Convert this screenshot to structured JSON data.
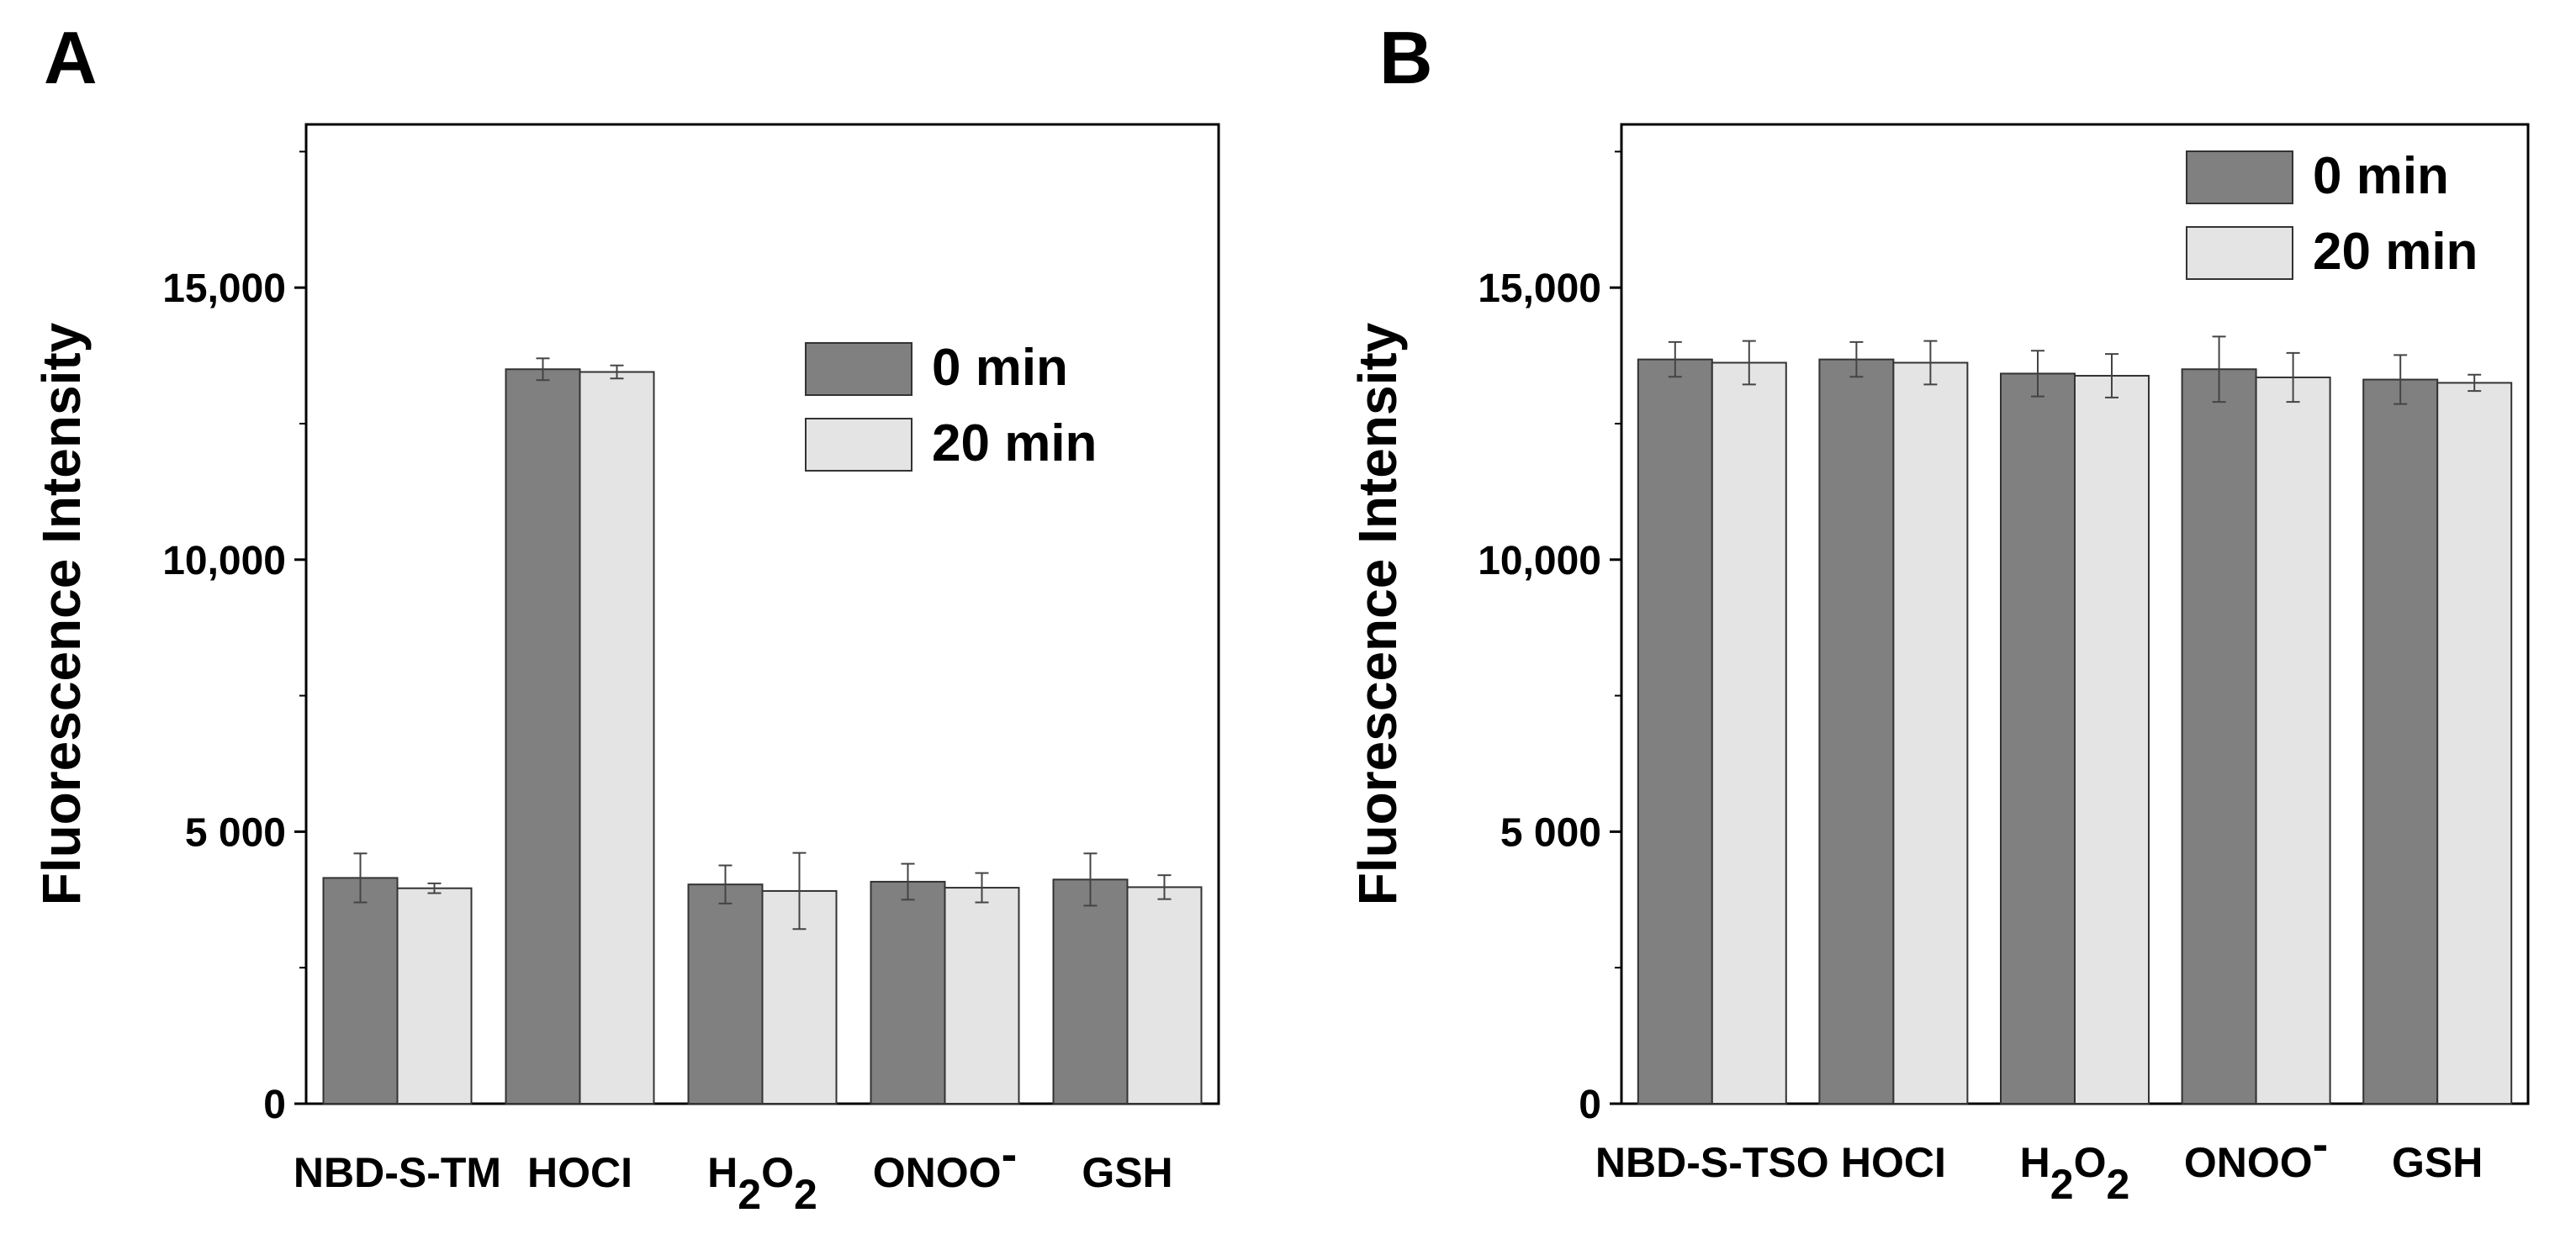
{
  "colors": {
    "series_0": "#808080",
    "series_1": "#e4e4e4",
    "edge": "#333333",
    "error": "#444444"
  },
  "chart_data": [
    {
      "type": "bar",
      "panel_label": "A",
      "ylabel": "Fluorescence Intensity",
      "xlabel": "",
      "ylim": [
        0,
        18000
      ],
      "yticks": [
        0,
        5000,
        10000,
        15000
      ],
      "ytick_labels": [
        "0",
        "5 000",
        "10,000",
        "15,000"
      ],
      "categories": [
        "NBD-S-TM",
        "HOCl",
        "H2O2",
        "ONOO-",
        "GSH"
      ],
      "legend_position": "center-right",
      "series": [
        {
          "name": "0 min",
          "values": [
            4150,
            13500,
            4030,
            4080,
            4120
          ],
          "errors": [
            450,
            200,
            350,
            330,
            480
          ]
        },
        {
          "name": "20 min",
          "values": [
            3960,
            13450,
            3910,
            3970,
            3980
          ],
          "errors": [
            90,
            120,
            700,
            270,
            220
          ]
        }
      ]
    },
    {
      "type": "bar",
      "panel_label": "B",
      "ylabel": "Fluorescence Intensity",
      "xlabel": "",
      "ylim": [
        0,
        18000
      ],
      "yticks": [
        0,
        5000,
        10000,
        15000
      ],
      "ytick_labels": [
        "0",
        "5 000",
        "10,000",
        "15,000"
      ],
      "categories": [
        "NBD-S-TSO",
        "HOCl",
        "H2O2",
        "ONOO-",
        "GSH"
      ],
      "legend_position": "top-right",
      "series": [
        {
          "name": "0 min",
          "values": [
            13680,
            13680,
            13420,
            13500,
            13310
          ],
          "errors": [
            320,
            320,
            420,
            600,
            450
          ]
        },
        {
          "name": "20 min",
          "values": [
            13620,
            13620,
            13380,
            13350,
            13250
          ],
          "errors": [
            400,
            400,
            400,
            450,
            150
          ]
        }
      ]
    }
  ]
}
